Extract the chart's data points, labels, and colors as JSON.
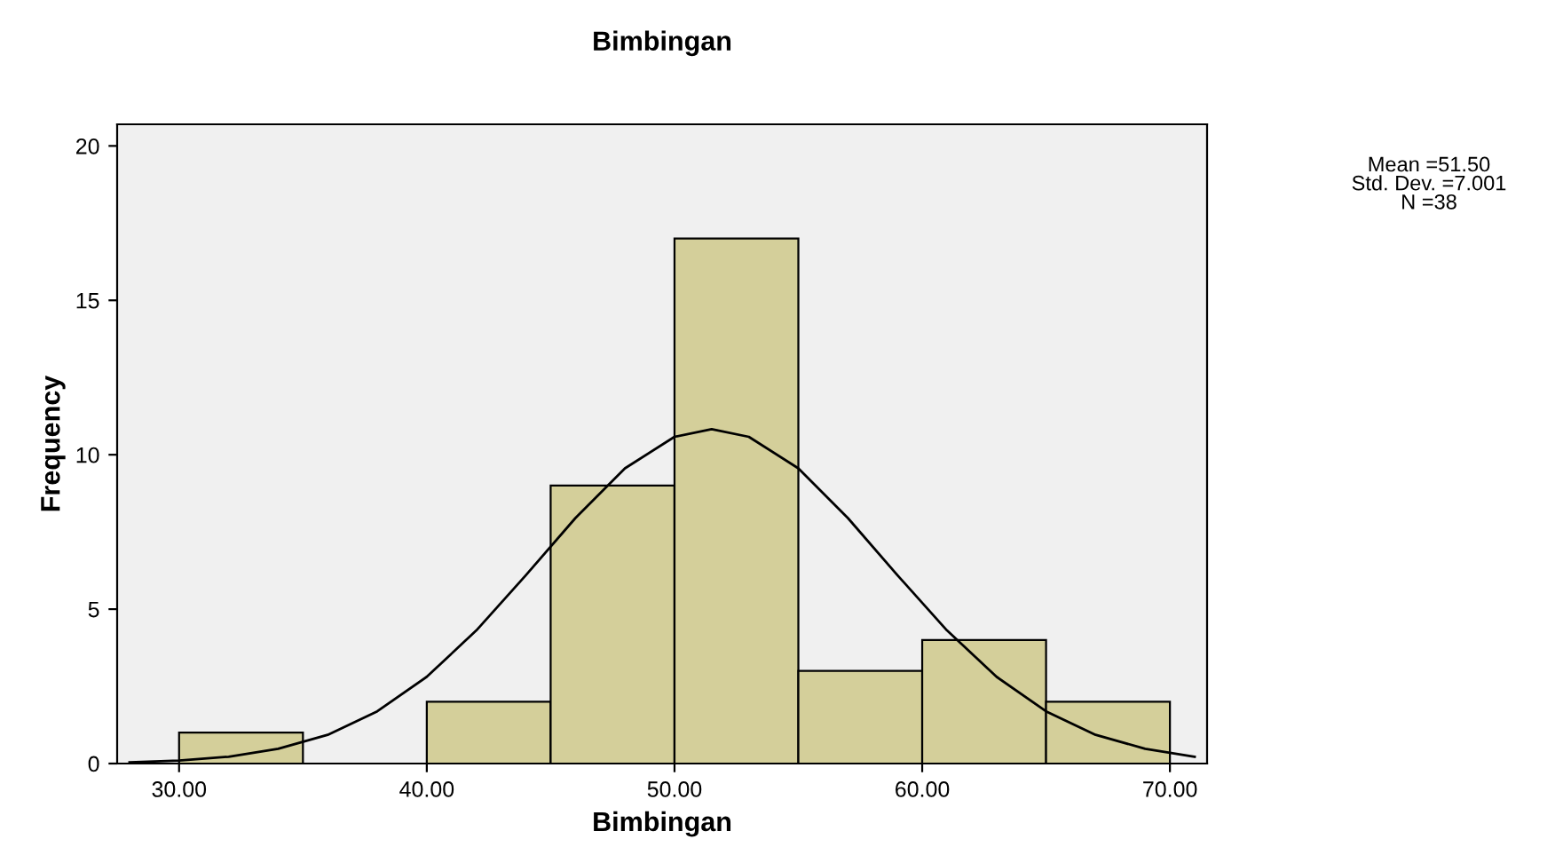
{
  "chart_data": {
    "type": "histogram",
    "title": "Bimbingan",
    "xlabel": "Bimbingan",
    "ylabel": "Frequency",
    "bins": [
      30,
      35,
      40,
      45,
      50,
      55,
      60,
      65,
      70
    ],
    "values": [
      1,
      0,
      2,
      9,
      17,
      3,
      4,
      2
    ],
    "color": "#d4cf9a",
    "series": [
      {
        "type": "line",
        "color": "#000000",
        "x": [
          28,
          30,
          32,
          34,
          36,
          38,
          40,
          42,
          44,
          46,
          48,
          50,
          51.5,
          53,
          55,
          57,
          59,
          61,
          63,
          65,
          67,
          69,
          71
        ],
        "values": [
          0.04,
          0.1,
          0.22,
          0.48,
          0.93,
          1.69,
          2.81,
          4.31,
          6.1,
          7.95,
          9.56,
          10.58,
          10.83,
          10.58,
          9.56,
          7.95,
          6.1,
          4.31,
          2.81,
          1.69,
          0.93,
          0.48,
          0.22
        ]
      }
    ],
    "xlim": [
      27.5,
      71.5
    ],
    "ylim": [
      0,
      20.7
    ],
    "xticks": [
      {
        "value": 30,
        "label": "30.00"
      },
      {
        "value": 40,
        "label": "40.00"
      },
      {
        "value": 50,
        "label": "50.00"
      },
      {
        "value": 60,
        "label": "60.00"
      },
      {
        "value": 70,
        "label": "70.00"
      }
    ],
    "yticks": [
      0,
      5,
      10,
      15,
      20
    ],
    "grid": false,
    "legend": false,
    "annotations": [
      "Mean =51.50\nStd. Dev. =7.001\nN =38"
    ]
  }
}
